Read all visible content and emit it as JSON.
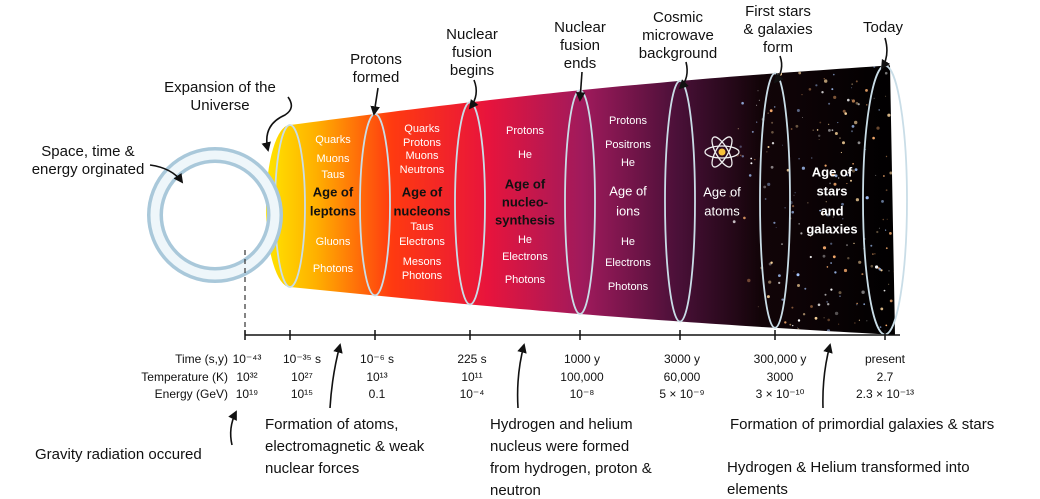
{
  "top_labels": [
    [
      "Space, time &",
      "energy orginated"
    ],
    [
      "Expansion of the",
      "Universe"
    ],
    [
      "Protons",
      "formed"
    ],
    [
      "Nuclear",
      "fusion",
      "begins"
    ],
    [
      "Nuclear",
      "fusion",
      "ends"
    ],
    [
      "Cosmic",
      "microwave",
      "background"
    ],
    [
      "First stars",
      "& galaxies",
      "form"
    ],
    [
      "Today"
    ]
  ],
  "eras": [
    {
      "above": [
        "Quarks",
        "Muons",
        "Taus"
      ],
      "name": [
        "Age of",
        "leptons"
      ],
      "below": [
        "Gluons",
        "Photons"
      ]
    },
    {
      "above": [
        "Quarks",
        "Protons",
        "Muons",
        "Neutrons"
      ],
      "name": [
        "Age of",
        "nucleons"
      ],
      "below": [
        "Taus",
        "Electrons",
        "Mesons",
        "Photons"
      ]
    },
    {
      "above": [
        "Protons",
        "He"
      ],
      "name": [
        "Age of",
        "nucleo-",
        "synthesis"
      ],
      "below": [
        "He",
        "Electrons",
        "Photons"
      ]
    },
    {
      "above": [
        "Protons",
        "Positrons",
        "He"
      ],
      "name": [
        "Age of",
        "ions"
      ],
      "below": [
        "He",
        "Electrons",
        "Photons"
      ]
    },
    {
      "name": [
        "Age of",
        "atoms"
      ]
    },
    {
      "name": [
        "Age of",
        "stars",
        "and",
        "galaxies"
      ]
    }
  ],
  "timeline": {
    "rows": [
      "Time (s,y)",
      "Temperature (K)",
      "Energy (GeV)"
    ],
    "columns": [
      {
        "time": "10⁻⁴³",
        "temperature": "10³²",
        "energy": "10¹⁹"
      },
      {
        "time": "10⁻³⁵ s",
        "temperature": "10²⁷",
        "energy": "10¹⁵"
      },
      {
        "time": "10⁻⁶ s",
        "temperature": "10¹³",
        "energy": "0.1"
      },
      {
        "time": "225 s",
        "temperature": "10¹¹",
        "energy": "10⁻⁴"
      },
      {
        "time": "1000 y",
        "temperature": "100,000",
        "energy": "10⁻⁸"
      },
      {
        "time": "3000 y",
        "temperature": "60,000",
        "energy": "5 × 10⁻⁹"
      },
      {
        "time": "300,000 y",
        "temperature": "3000",
        "energy": "3 × 10⁻¹⁰"
      },
      {
        "time": "present",
        "temperature": "2.7",
        "energy": "2.3 × 10⁻¹³"
      }
    ]
  },
  "bottom_labels": [
    [
      "Gravity radiation occured"
    ],
    [
      "Formation of atoms,",
      "electromagnetic & weak",
      "nuclear forces"
    ],
    [
      "Hydrogen and helium",
      "nucleus were formed",
      "from hydrogen, proton &",
      "neutron"
    ],
    [
      "Formation of primordial galaxies & stars"
    ],
    [
      "Hydrogen & Helium transformed into",
      "elements"
    ]
  ]
}
